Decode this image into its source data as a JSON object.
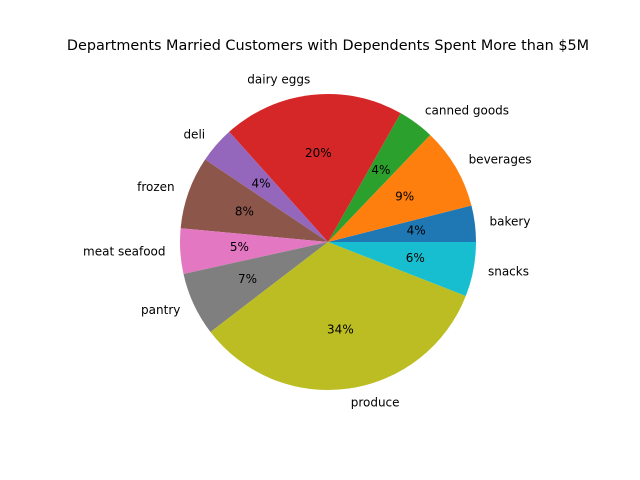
{
  "chart_data": {
    "type": "pie",
    "title": "Departments Married Customers with Dependents Spent More than $5M",
    "start_angle_deg": 0,
    "direction": "counterclockwise",
    "slices": [
      {
        "label": "bakery",
        "value": 4,
        "pct_label": "4%",
        "color": "#1f77b4"
      },
      {
        "label": "beverages",
        "value": 9,
        "pct_label": "9%",
        "color": "#ff7f0e"
      },
      {
        "label": "canned goods",
        "value": 4,
        "pct_label": "4%",
        "color": "#2ca02c"
      },
      {
        "label": "dairy eggs",
        "value": 20,
        "pct_label": "20%",
        "color": "#d62728"
      },
      {
        "label": "deli",
        "value": 4,
        "pct_label": "4%",
        "color": "#9467bd"
      },
      {
        "label": "frozen",
        "value": 8,
        "pct_label": "8%",
        "color": "#8c564b"
      },
      {
        "label": "meat seafood",
        "value": 5,
        "pct_label": "5%",
        "color": "#e377c2"
      },
      {
        "label": "pantry",
        "value": 7,
        "pct_label": "7%",
        "color": "#7f7f7f"
      },
      {
        "label": "produce",
        "value": 34,
        "pct_label": "34%",
        "color": "#bcbd22"
      },
      {
        "label": "snacks",
        "value": 6,
        "pct_label": "6%",
        "color": "#17becf"
      }
    ]
  }
}
